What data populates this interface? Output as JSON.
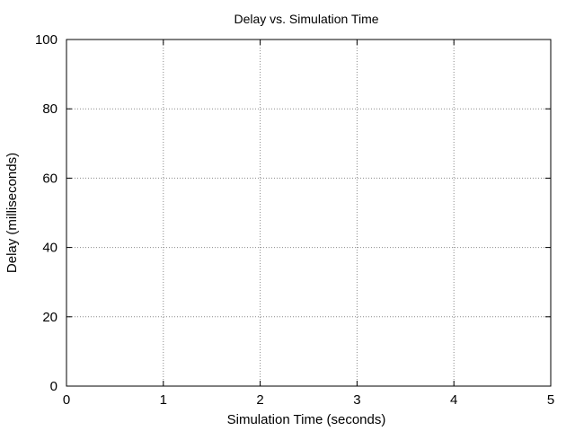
{
  "chart_data": {
    "type": "line",
    "title": "Delay vs. Simulation Time",
    "xlabel": "Simulation Time (seconds)",
    "ylabel": "Delay (milliseconds)",
    "xlim": [
      0,
      5
    ],
    "ylim": [
      0,
      100
    ],
    "x_ticks": [
      "0",
      "1",
      "2",
      "3",
      "4",
      "5"
    ],
    "y_ticks": [
      "0",
      "20",
      "40",
      "60",
      "80",
      "100"
    ],
    "grid": true,
    "grid_style": "dotted",
    "series": []
  }
}
